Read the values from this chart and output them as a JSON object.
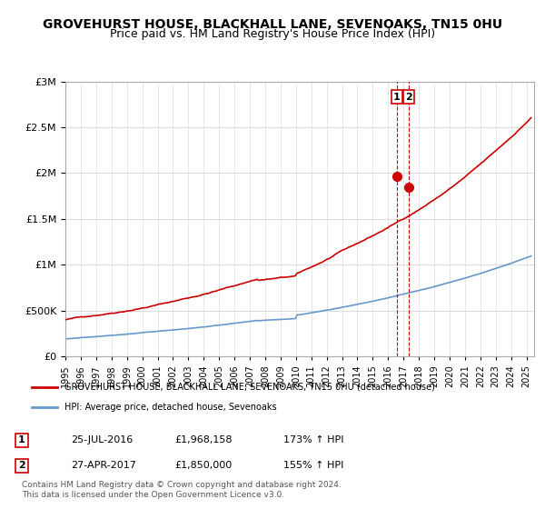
{
  "title": "GROVEHURST HOUSE, BLACKHALL LANE, SEVENOAKS, TN15 0HU",
  "subtitle": "Price paid vs. HM Land Registry's House Price Index (HPI)",
  "xlabel": "",
  "ylabel": "",
  "ylim": [
    0,
    3000000
  ],
  "xlim_start": 1995.0,
  "xlim_end": 2025.5,
  "yticks": [
    0,
    500000,
    1000000,
    1500000,
    2000000,
    2500000,
    3000000
  ],
  "ytick_labels": [
    "£0",
    "£500K",
    "£1M",
    "£1.5M",
    "£2M",
    "£2.5M",
    "£3M"
  ],
  "sale1_x": 2016.56,
  "sale1_y": 1968158,
  "sale1_label": "1",
  "sale2_x": 2017.32,
  "sale2_y": 1850000,
  "sale2_label": "2",
  "red_line_color": "#cc0000",
  "blue_line_color": "#6699cc",
  "marker_color": "#cc0000",
  "dashed_line_color": "#cc0000",
  "legend_label_red": "GROVEHURST HOUSE, BLACKHALL LANE, SEVENOAKS, TN15 0HU (detached house)",
  "legend_label_blue": "HPI: Average price, detached house, Sevenoaks",
  "table_row1": [
    "1",
    "25-JUL-2016",
    "£1,968,158",
    "173% ↑ HPI"
  ],
  "table_row2": [
    "2",
    "27-APR-2017",
    "£1,850,000",
    "155% ↑ HPI"
  ],
  "footer": "Contains HM Land Registry data © Crown copyright and database right 2024.\nThis data is licensed under the Open Government Licence v3.0.",
  "bg_color": "#ffffff",
  "grid_color": "#dddddd",
  "title_fontsize": 10,
  "subtitle_fontsize": 9,
  "tick_fontsize": 8
}
